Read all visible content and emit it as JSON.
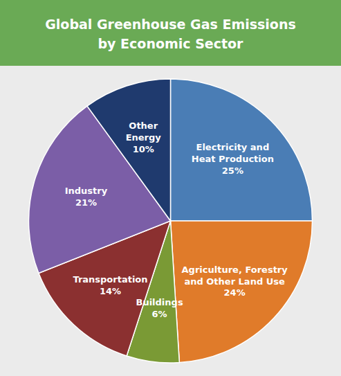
{
  "chart_data": {
    "type": "pie",
    "title": "Global Greenhouse Gas Emissions",
    "subtitle": "by Economic Sector",
    "categories": [
      "Electricity and\nHeat Production",
      "Agriculture, Forestry\nand Other Land Use",
      "Buildings",
      "Transportation",
      "Industry",
      "Other\nEnergy"
    ],
    "values": [
      25,
      24,
      6,
      14,
      21,
      10
    ],
    "value_labels": [
      "25%",
      "24%",
      "6%",
      "14%",
      "21%",
      "10%"
    ],
    "data_labels": true,
    "colors": [
      "#4a7db5",
      "#e07b2a",
      "#7a9a35",
      "#8b3030",
      "#7b5ea7",
      "#1f3a6e"
    ]
  }
}
